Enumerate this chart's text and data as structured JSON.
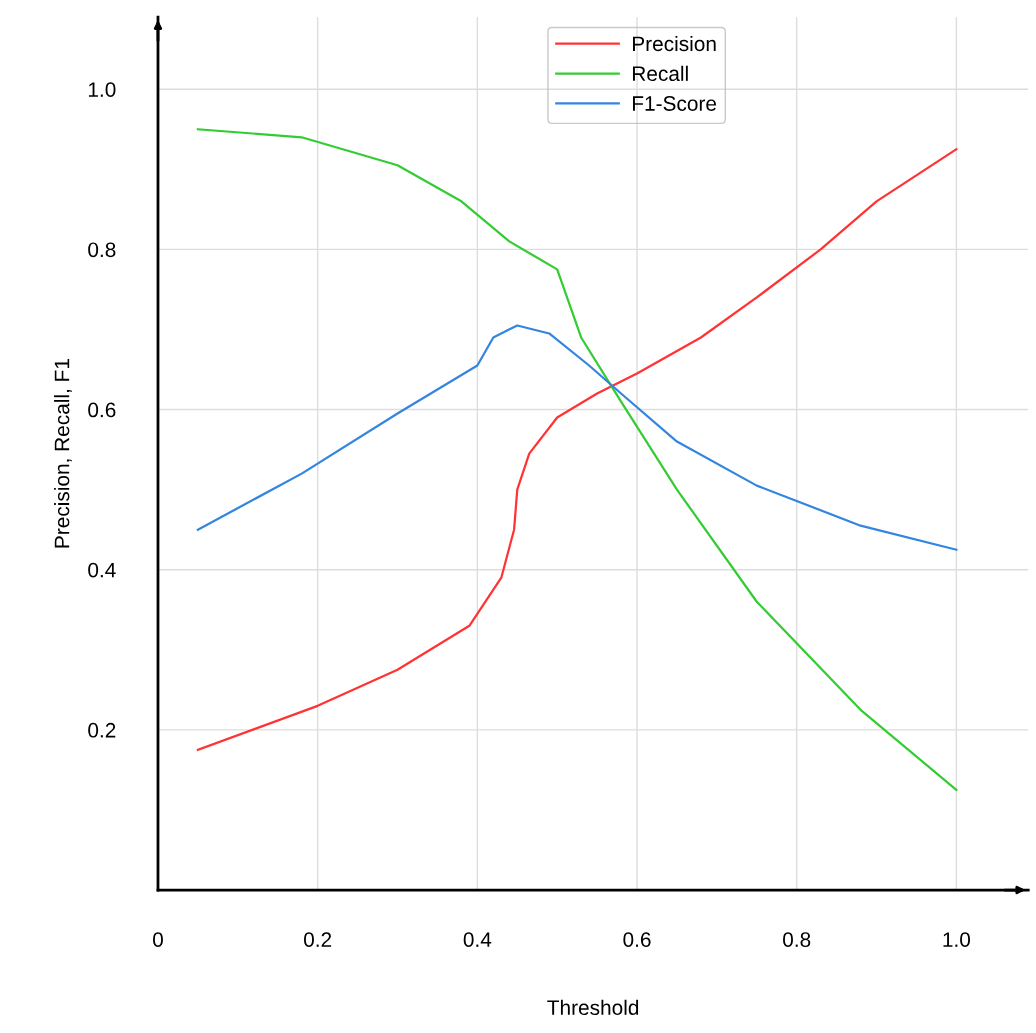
{
  "chart_data": {
    "type": "line",
    "xlabel": "Threshold",
    "ylabel": "Precision, Recall, F1",
    "xlim": [
      0,
      1.09
    ],
    "ylim": [
      0,
      1.09
    ],
    "xticks": [
      0,
      0.2,
      0.4,
      0.6,
      0.8,
      {
        "value": 1.0,
        "label": "1.0"
      }
    ],
    "yticks": [
      0.2,
      0.4,
      0.6,
      0.8,
      {
        "value": 1.0,
        "label": "1.0"
      }
    ],
    "grid": true,
    "legend": "top",
    "marker": "none",
    "line_style": "solid",
    "series": [
      {
        "name": "Precision",
        "color": "#ff3333",
        "x": [
          0.05,
          0.2,
          0.3,
          0.39,
          0.43,
          0.446,
          0.45,
          0.465,
          0.5,
          0.55,
          0.6,
          0.68,
          0.75,
          0.83,
          0.9,
          1.0
        ],
        "values": [
          0.175,
          0.23,
          0.275,
          0.33,
          0.39,
          0.45,
          0.5,
          0.545,
          0.59,
          0.62,
          0.645,
          0.69,
          0.74,
          0.8,
          0.86,
          0.925
        ]
      },
      {
        "name": "Recall",
        "color": "#33cc33",
        "x": [
          0.05,
          0.18,
          0.3,
          0.38,
          0.44,
          0.5,
          0.53,
          0.58,
          0.65,
          0.75,
          0.88,
          1.0
        ],
        "values": [
          0.95,
          0.94,
          0.905,
          0.86,
          0.81,
          0.775,
          0.69,
          0.61,
          0.5,
          0.36,
          0.225,
          0.125
        ]
      },
      {
        "name": "F1-Score",
        "color": "#3385e0",
        "x": [
          0.05,
          0.18,
          0.3,
          0.4,
          0.42,
          0.45,
          0.49,
          0.54,
          0.58,
          0.65,
          0.75,
          0.88,
          1.0
        ],
        "values": [
          0.45,
          0.52,
          0.595,
          0.655,
          0.69,
          0.705,
          0.695,
          0.655,
          0.62,
          0.56,
          0.505,
          0.455,
          0.425
        ]
      }
    ]
  }
}
